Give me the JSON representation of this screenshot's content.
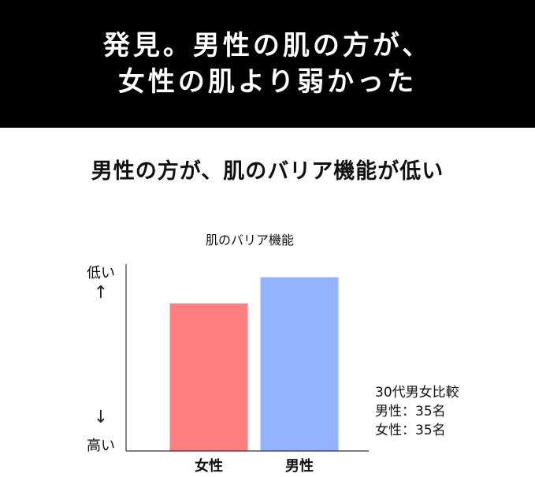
{
  "banner": {
    "line1": "発見。男性の肌の方が、",
    "line2": "女性の肌より弱かった"
  },
  "subheading": "男性の方が、肌のバリア機能が低い",
  "chart_data": {
    "type": "bar",
    "title": "肌のバリア機能",
    "categories": [
      "女性",
      "男性"
    ],
    "values": [
      0.79,
      0.93
    ],
    "colors": [
      "#ff7f80",
      "#93b2ff"
    ],
    "y_axis": {
      "top_label": "低い",
      "bottom_label": "高い",
      "up_arrow": "↑",
      "down_arrow": "↓"
    },
    "ylim": [
      0,
      1
    ],
    "grid": false,
    "notes": [
      "30代男女比較",
      "男性：35名",
      "女性：35名"
    ]
  }
}
